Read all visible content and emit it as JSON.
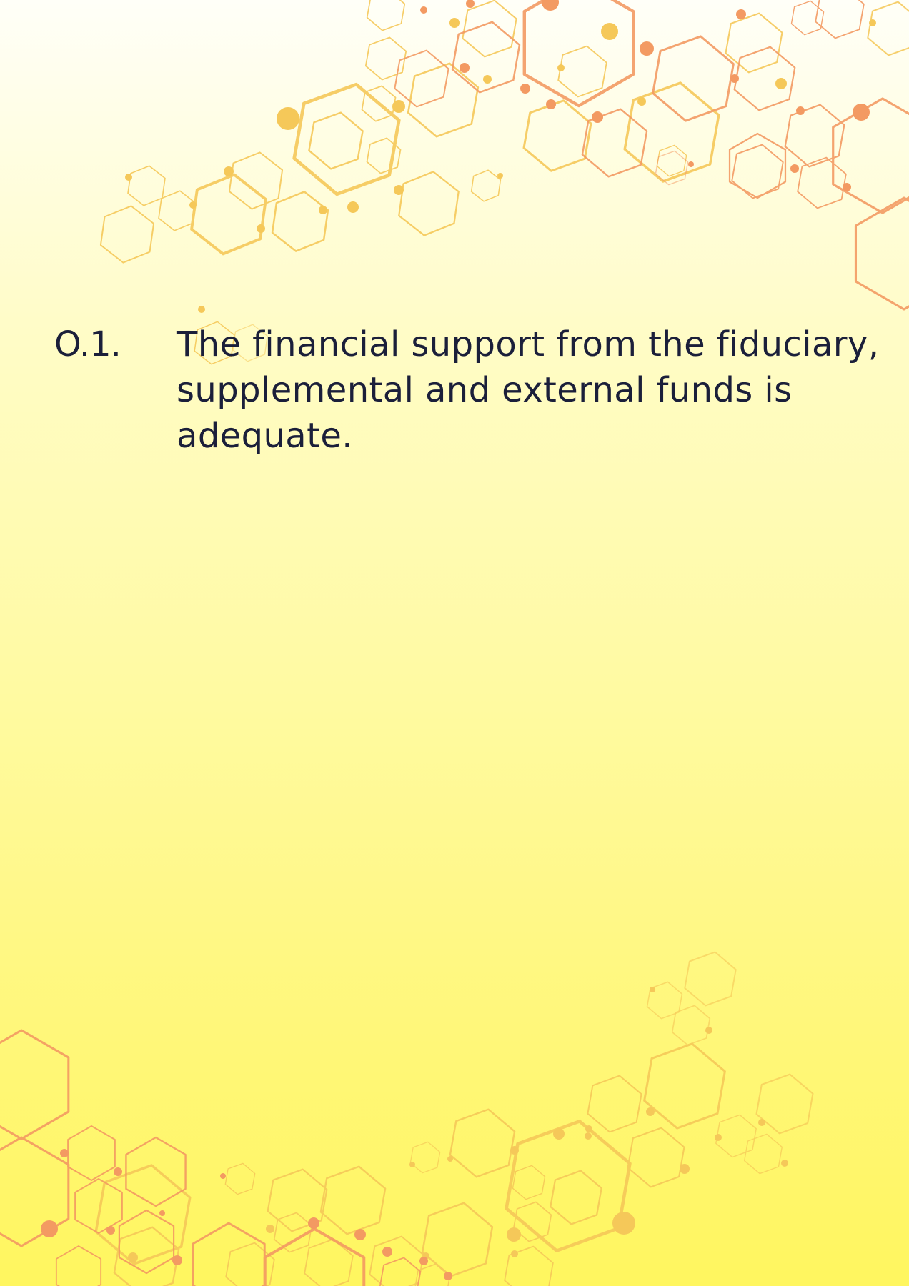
{
  "question": {
    "number": "O.1.",
    "text": "The financial support from the fiduciary, supplemental and external funds is adequate."
  },
  "colors": {
    "text": "#1b1f3a",
    "hex_yellow": "#f7c95a",
    "hex_orange": "#f39a62",
    "background_top": "#fffff8",
    "background_bottom": "#fff65f"
  },
  "decor": {
    "pattern": "hexagon-network"
  }
}
